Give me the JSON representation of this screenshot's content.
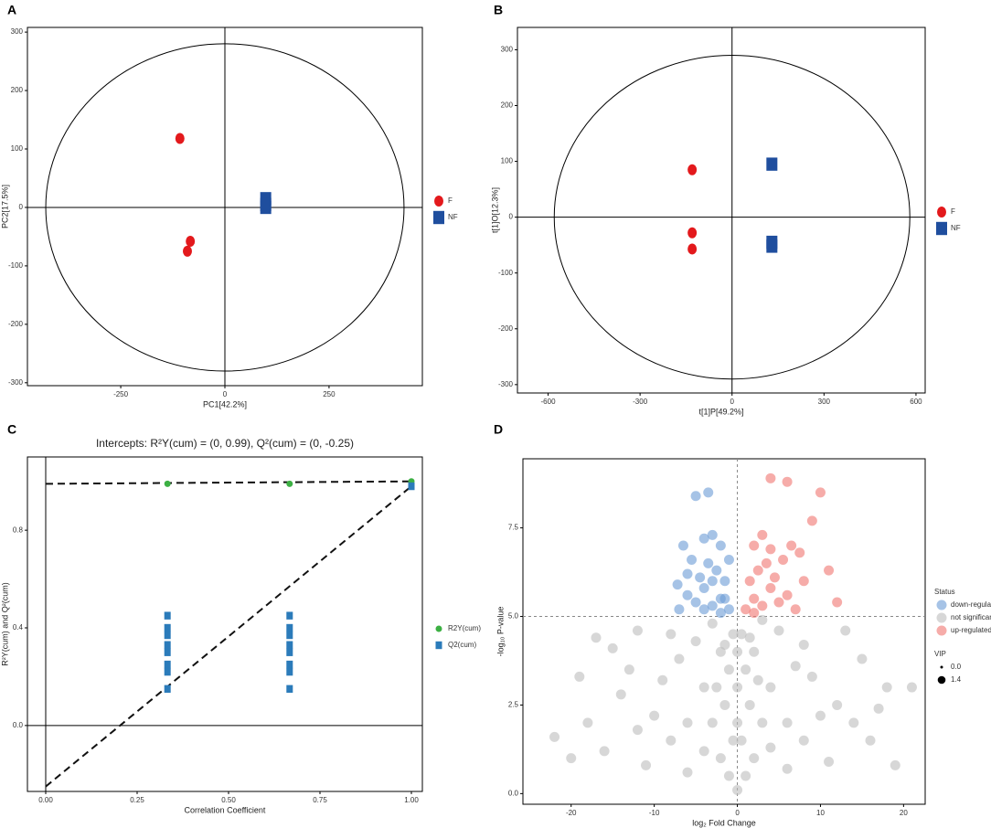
{
  "chart_data": [
    {
      "type": "scatter",
      "panel": "A",
      "xlabel": "PC1[42.2%]",
      "ylabel": "PC2[17.5%]",
      "xlim": [
        -474,
        474
      ],
      "ylim": [
        -305,
        308
      ],
      "xticks": [
        -250,
        0,
        250
      ],
      "yticks": [
        -300,
        -200,
        -100,
        0,
        100,
        200,
        300
      ],
      "ellipse": [
        430,
        280
      ],
      "hline": 0,
      "vline": 0,
      "series": [
        {
          "name": "F",
          "color": "#e3191c",
          "marker": "circle",
          "x": [
            -108,
            -83,
            -90
          ],
          "y": [
            118,
            -58,
            -75
          ]
        },
        {
          "name": "NF",
          "color": "#1f4e9e",
          "marker": "square",
          "x": [
            98,
            98,
            98
          ],
          "y": [
            15,
            5,
            0
          ]
        }
      ]
    },
    {
      "type": "scatter",
      "panel": "B",
      "xlabel": "t[1]P[49.2%]",
      "ylabel": "t[1]O[12.3%]",
      "xlim": [
        -700,
        630
      ],
      "ylim": [
        -315,
        340
      ],
      "xticks": [
        -600,
        -300,
        0,
        300,
        600
      ],
      "yticks": [
        -300,
        -200,
        -100,
        0,
        100,
        200,
        300
      ],
      "ellipse": [
        580,
        290
      ],
      "hline": 0,
      "vline": 0,
      "series": [
        {
          "name": "F",
          "color": "#e3191c",
          "marker": "circle",
          "x": [
            -130,
            -130,
            -130
          ],
          "y": [
            85,
            -28,
            -57
          ]
        },
        {
          "name": "NF",
          "color": "#1f4e9e",
          "marker": "square",
          "x": [
            130,
            130,
            130
          ],
          "y": [
            95,
            -45,
            -52
          ]
        }
      ]
    },
    {
      "type": "scatter",
      "panel": "C",
      "title": "Intercepts: R²Y(cum) = (0, 0.99), Q²(cum) = (0, -0.25)",
      "xlabel": "Correlation Coefficient",
      "ylabel": "R²Y(cum) and Q²(cum)",
      "xlim": [
        -0.05,
        1.03
      ],
      "ylim": [
        -0.27,
        1.1
      ],
      "xticks": [
        {
          "value": 0,
          "label": "0.00"
        },
        {
          "value": 0.25,
          "label": "0.25"
        },
        {
          "value": 0.5,
          "label": "0.50"
        },
        {
          "value": 0.75,
          "label": "0.75"
        },
        {
          "value": 1,
          "label": "1.00"
        }
      ],
      "yticks": [
        {
          "value": 0,
          "label": "0.0"
        },
        {
          "value": 0.4,
          "label": "0.4"
        },
        {
          "value": 0.8,
          "label": "0.8"
        }
      ],
      "hline": 0,
      "vline": 0,
      "lines": [
        {
          "x": [
            0,
            1
          ],
          "y": [
            0.99,
            1.0
          ]
        },
        {
          "x": [
            0,
            1
          ],
          "y": [
            -0.25,
            0.98
          ]
        }
      ],
      "series": [
        {
          "name": "R2Y(cum)",
          "color": "#3cb043",
          "marker": "circle",
          "x": [
            0.333,
            0.667,
            1.0
          ],
          "y": [
            0.99,
            0.99,
            1.0
          ]
        },
        {
          "name": "Q2(cum)",
          "color": "#2b7bba",
          "marker": "square",
          "x": [
            0.333,
            0.333,
            0.333,
            0.333,
            0.333,
            0.333,
            0.333,
            0.333,
            0.667,
            0.667,
            0.667,
            0.667,
            0.667,
            0.667,
            0.667,
            0.667,
            1.0
          ],
          "y": [
            0.45,
            0.4,
            0.37,
            0.33,
            0.3,
            0.25,
            0.22,
            0.15,
            0.45,
            0.4,
            0.37,
            0.33,
            0.3,
            0.25,
            0.22,
            0.15,
            0.98
          ]
        }
      ]
    },
    {
      "type": "scatter",
      "panel": "D",
      "xlabel": "log₂ Fold Change",
      "ylabel": "-log₁₀ P-value",
      "xlim": [
        -25.8,
        22.6
      ],
      "ylim": [
        -0.3,
        9.45
      ],
      "xticks": [
        -20,
        -10,
        0,
        10,
        20
      ],
      "yticks": [
        {
          "value": 0,
          "label": "0.0"
        },
        {
          "value": 2.5,
          "label": "2.5"
        },
        {
          "value": 5,
          "label": "5.0"
        },
        {
          "value": 7.5,
          "label": "7.5"
        }
      ],
      "hline": 5,
      "vline": 0,
      "dashed_refs": true,
      "legend_title": "Status",
      "size_legend": {
        "title": "VIP",
        "values": [
          {
            "value": 0,
            "label": "0.0"
          },
          {
            "value": 1.4,
            "label": "1.4"
          }
        ]
      },
      "series": [
        {
          "name": "down-regulated",
          "color": "#6b9bd6",
          "marker": "circle",
          "x": [
            -1,
            -2,
            -3,
            -4,
            -5,
            -6,
            -7,
            -1.5,
            -2.5,
            -3.5,
            -4.5,
            -5.5,
            -6.5,
            -7.2,
            -2,
            -3,
            -4,
            -5,
            -3.5,
            -1,
            -6,
            -2,
            -4,
            -3,
            -1.5
          ],
          "y": [
            5.2,
            5.5,
            5.3,
            5.8,
            5.4,
            5.6,
            5.2,
            6,
            6.3,
            6.5,
            6.1,
            6.6,
            7,
            5.9,
            7,
            7.3,
            7.2,
            8.4,
            8.5,
            6.6,
            6.2,
            5.1,
            5.2,
            6,
            5.5
          ]
        },
        {
          "name": "not significant",
          "color": "#bdbdbd",
          "marker": "circle",
          "x": [
            0,
            -1,
            1,
            -2,
            2,
            -0.5,
            0.5,
            -3,
            3,
            -1.5,
            1.5,
            -1,
            1,
            -0.5,
            0.5,
            -2,
            2,
            -4,
            4,
            -6,
            6,
            -8,
            8,
            -10,
            10,
            -12,
            12,
            -14,
            14,
            -16,
            16,
            -18,
            18,
            -20,
            21,
            -9,
            9,
            -7,
            7,
            -5,
            5,
            -3,
            3,
            -11,
            11,
            -13,
            15,
            -6,
            6,
            -4,
            4,
            -15,
            17,
            -19,
            -2.5,
            2.5,
            -1.5,
            1.5,
            -8,
            8,
            -22,
            19,
            -17,
            13,
            -12,
            0,
            0,
            0
          ],
          "y": [
            0.1,
            0.5,
            0.5,
            1,
            1,
            1.5,
            1.5,
            2,
            2,
            2.5,
            2.5,
            3.5,
            3.5,
            4.5,
            4.5,
            4,
            4,
            3,
            3,
            2,
            2,
            1.5,
            1.5,
            2.2,
            2.2,
            1.8,
            2.5,
            2.8,
            2,
            1.2,
            1.5,
            2,
            3,
            1,
            3,
            3.2,
            3.3,
            3.8,
            3.6,
            4.3,
            4.6,
            4.8,
            4.9,
            0.8,
            0.9,
            3.5,
            3.8,
            0.6,
            0.7,
            1.2,
            1.3,
            4.1,
            2.4,
            3.3,
            3,
            3.2,
            4.2,
            4.4,
            4.5,
            4.2,
            1.6,
            0.8,
            4.4,
            4.6,
            4.6,
            2,
            3,
            4
          ]
        },
        {
          "name": "up-regulated",
          "color": "#f07470",
          "marker": "circle",
          "x": [
            1,
            2,
            3,
            4,
            5,
            6,
            7,
            1.5,
            2.5,
            3.5,
            4.5,
            5.5,
            6.5,
            7.5,
            2,
            3,
            4,
            6,
            10,
            9,
            11,
            12,
            8,
            2,
            4
          ],
          "y": [
            5.2,
            5.5,
            5.3,
            5.8,
            5.4,
            5.6,
            5.2,
            6,
            6.3,
            6.5,
            6.1,
            6.6,
            7,
            6.8,
            7,
            7.3,
            8.9,
            8.8,
            8.5,
            7.7,
            6.3,
            5.4,
            6,
            5.1,
            6.9
          ]
        }
      ]
    }
  ]
}
